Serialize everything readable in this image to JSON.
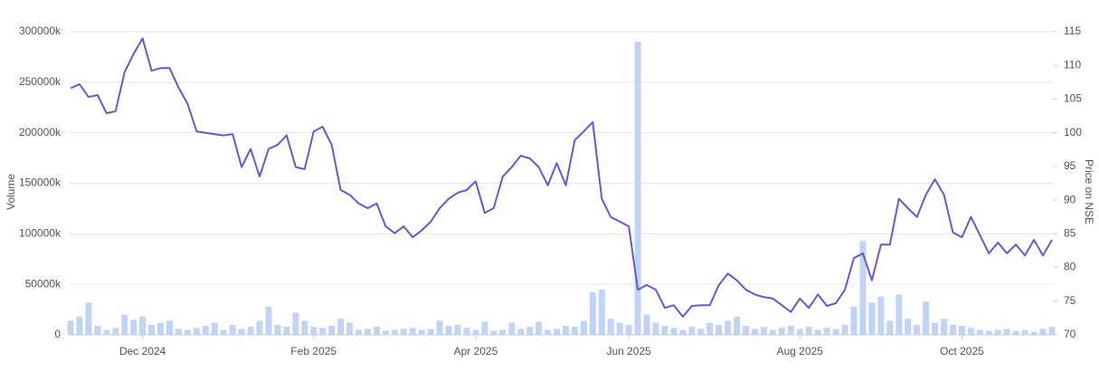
{
  "chart_data": {
    "type": "bar-line",
    "y_label": "Volume",
    "y2_label": "Price on NSE",
    "categories": [
      null,
      null,
      null,
      null,
      null,
      null,
      null,
      null,
      "Dec 2024",
      null,
      null,
      null,
      null,
      null,
      null,
      null,
      null,
      null,
      null,
      null,
      null,
      null,
      null,
      null,
      null,
      null,
      null,
      "Feb 2025",
      null,
      null,
      null,
      null,
      null,
      null,
      null,
      null,
      null,
      null,
      null,
      null,
      null,
      null,
      null,
      null,
      null,
      "Apr 2025",
      null,
      null,
      null,
      null,
      null,
      null,
      null,
      null,
      null,
      null,
      null,
      null,
      null,
      null,
      null,
      null,
      "Jun 2025",
      null,
      null,
      null,
      null,
      null,
      null,
      null,
      null,
      null,
      null,
      null,
      null,
      null,
      null,
      null,
      null,
      null,
      null,
      "Aug 2025",
      null,
      null,
      null,
      null,
      null,
      null,
      null,
      null,
      null,
      null,
      null,
      null,
      null,
      null,
      null,
      null,
      null,
      "Oct 2025",
      null,
      null,
      null,
      null,
      null,
      null,
      null,
      null,
      null,
      null
    ],
    "series": [
      {
        "name": "Volume",
        "color": "#c2d4f6",
        "values": [
          14000,
          18000,
          32000,
          9000,
          5000,
          7000,
          20000,
          15000,
          18000,
          10000,
          12000,
          14000,
          6000,
          5000,
          7000,
          9000,
          12000,
          5000,
          10000,
          6000,
          8000,
          14000,
          28000,
          10000,
          8000,
          22000,
          14000,
          8000,
          7000,
          9000,
          16000,
          12000,
          5000,
          6000,
          8000,
          4000,
          5000,
          6000,
          7000,
          5000,
          6000,
          14000,
          9000,
          10000,
          7000,
          5000,
          13000,
          4000,
          5000,
          12000,
          6000,
          8000,
          13000,
          5000,
          6000,
          9000,
          8000,
          14000,
          42000,
          45000,
          16000,
          12000,
          10000,
          290000,
          20000,
          12000,
          9000,
          7000,
          5000,
          8000,
          6000,
          12000,
          10000,
          14000,
          18000,
          9000,
          6000,
          8000,
          5000,
          7000,
          9000,
          6000,
          8000,
          5000,
          7000,
          6000,
          10000,
          28000,
          93000,
          32000,
          38000,
          14000,
          40000,
          16000,
          10000,
          33000,
          12000,
          16000,
          10000,
          9000,
          7000,
          5000,
          4000,
          5000,
          6000,
          4000,
          5000,
          3000,
          6000,
          8000
        ]
      },
      {
        "name": "Price on NSE",
        "color": "#6458d4",
        "axis": "y2",
        "values": [
          106.6,
          107.2,
          105.3,
          105.6,
          102.9,
          103.2,
          109,
          111.7,
          114,
          109.2,
          109.6,
          109.6,
          106.7,
          104.3,
          100.2,
          100,
          99.8,
          99.6,
          99.8,
          94.9,
          97.6,
          93.5,
          97.6,
          98.2,
          99.6,
          94.9,
          94.6,
          100.2,
          100.9,
          98.2,
          91.5,
          90.8,
          89.5,
          88.8,
          89.5,
          86.1,
          85.1,
          86.1,
          84.5,
          85.5,
          86.8,
          88.8,
          90.2,
          91.1,
          91.5,
          92.8,
          88.1,
          88.8,
          93.5,
          94.9,
          96.6,
          96.2,
          94.9,
          92.2,
          95.5,
          92.2,
          98.9,
          100.2,
          101.6,
          90.2,
          87.5,
          86.8,
          86.1,
          76.7,
          77.4,
          76.7,
          74,
          74.4,
          72.7,
          74.3,
          74.4,
          74.4,
          77.4,
          79.1,
          78.1,
          76.7,
          76,
          75.6,
          75.4,
          74.4,
          73.4,
          75.4,
          74,
          76,
          74.3,
          74.7,
          76.7,
          81.4,
          82.1,
          78.1,
          83.4,
          83.4,
          90.2,
          88.8,
          87.5,
          90.8,
          93.1,
          90.8,
          85.2,
          84.5,
          87.5,
          84.8,
          82.1,
          83.7,
          82.1,
          83.4,
          81.8,
          84.1,
          81.8,
          84.1
        ]
      }
    ],
    "ylim": [
      0,
      300000
    ],
    "yticks": [
      0,
      {
        "value": 50000,
        "label": "50000k"
      },
      {
        "value": 100000,
        "label": "100000k"
      },
      {
        "value": 150000,
        "label": "150000k"
      },
      {
        "value": 200000,
        "label": "200000k"
      },
      {
        "value": 250000,
        "label": "250000k"
      },
      {
        "value": 300000,
        "label": "300000k"
      }
    ],
    "y2lim": [
      70,
      115
    ],
    "y2ticks": [
      70,
      75,
      80,
      85,
      90,
      95,
      100,
      105,
      110,
      115
    ],
    "grid": true
  }
}
